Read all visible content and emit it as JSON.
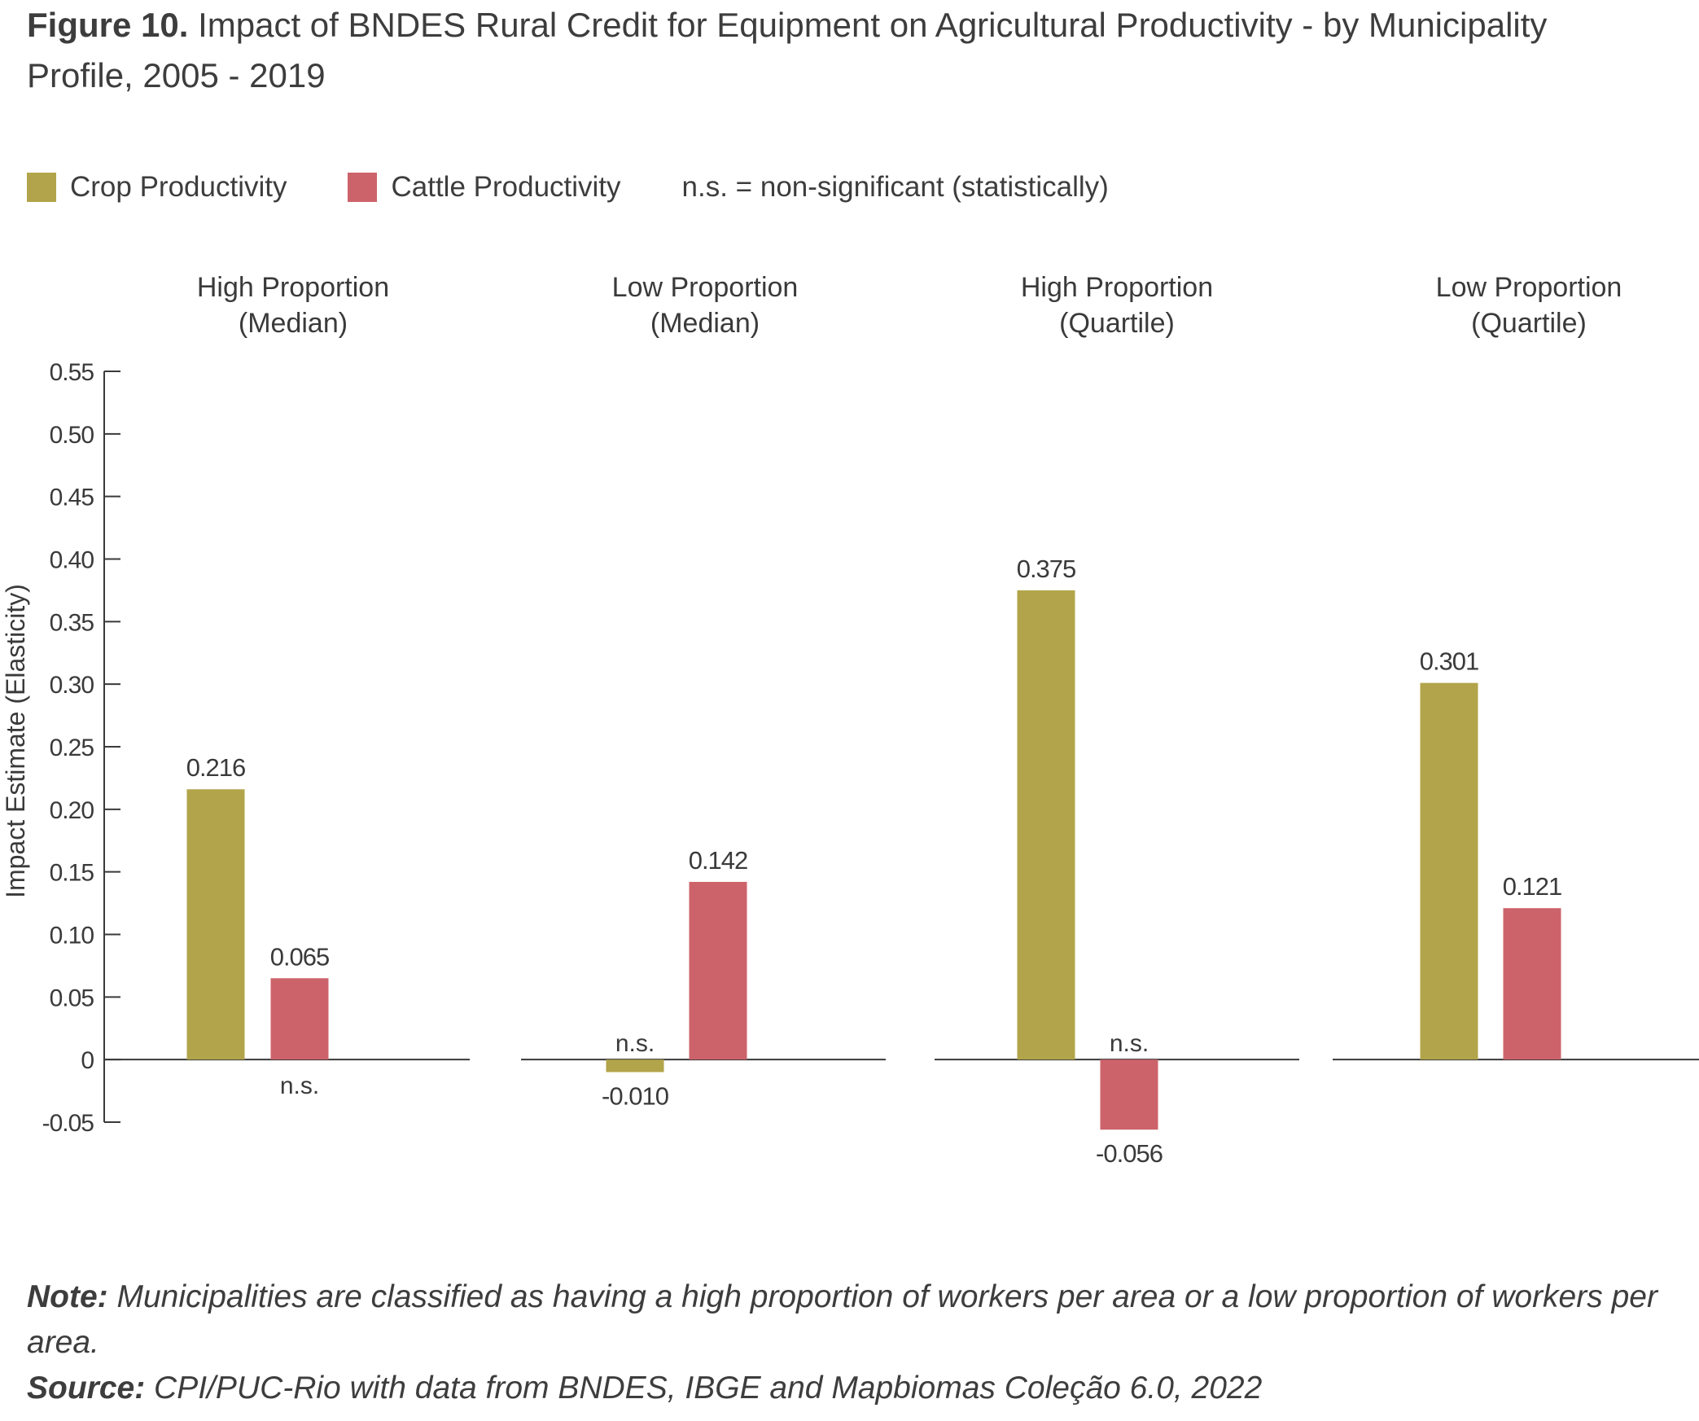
{
  "figure": {
    "label": "Figure 10.",
    "title": "Impact of BNDES Rural Credit for Equipment on Agricultural Productivity - by Municipality Profile, 2005 - 2019"
  },
  "legend": {
    "note": "n.s. = non-significant (statistically)"
  },
  "footer": {
    "note_label": "Note:",
    "note_text": "Municipalities are classified as having a high proportion of workers per area or a low proportion of workers per area.",
    "source_label": "Source:",
    "source_text": "CPI/PUC-Rio with data from BNDES, IBGE and Mapbiomas Coleção 6.0, 2022"
  },
  "colors": {
    "crop": "#b2a44a",
    "cattle": "#cd636a",
    "axis": "#3a3a3a"
  },
  "chart_data": {
    "type": "bar",
    "ylabel": "Impact Estimate (Elasticity)",
    "ylim": [
      -0.05,
      0.55
    ],
    "yticks": [
      "0.55",
      "0.50",
      "0.45",
      "0.40",
      "0.35",
      "0.30",
      "0.25",
      "0.20",
      "0.15",
      "0.10",
      "0.05",
      "0",
      "-0.05"
    ],
    "ytick_values": [
      0.55,
      0.5,
      0.45,
      0.4,
      0.35,
      0.3,
      0.25,
      0.2,
      0.15,
      0.1,
      0.05,
      0,
      -0.05
    ],
    "legend_placement": "top-left",
    "grid": false,
    "categories": [
      [
        "High Proportion",
        "(Median)"
      ],
      [
        "Low Proportion",
        "(Median)"
      ],
      [
        "High Proportion",
        "(Quartile)"
      ],
      [
        "Low Proportion",
        "(Quartile)"
      ]
    ],
    "series": [
      {
        "name": "Crop Productivity",
        "values": [
          0.216,
          -0.01,
          0.375,
          0.301
        ],
        "labels": [
          "0.216",
          "-0.010",
          "0.375",
          "0.301"
        ],
        "significance": [
          "",
          "n.s.",
          "",
          ""
        ]
      },
      {
        "name": "Cattle Productivity",
        "values": [
          0.065,
          0.142,
          -0.056,
          0.121
        ],
        "labels": [
          "0.065",
          "0.142",
          "-0.056",
          "0.121"
        ],
        "significance": [
          "n.s.",
          "",
          "n.s.",
          ""
        ]
      }
    ]
  }
}
